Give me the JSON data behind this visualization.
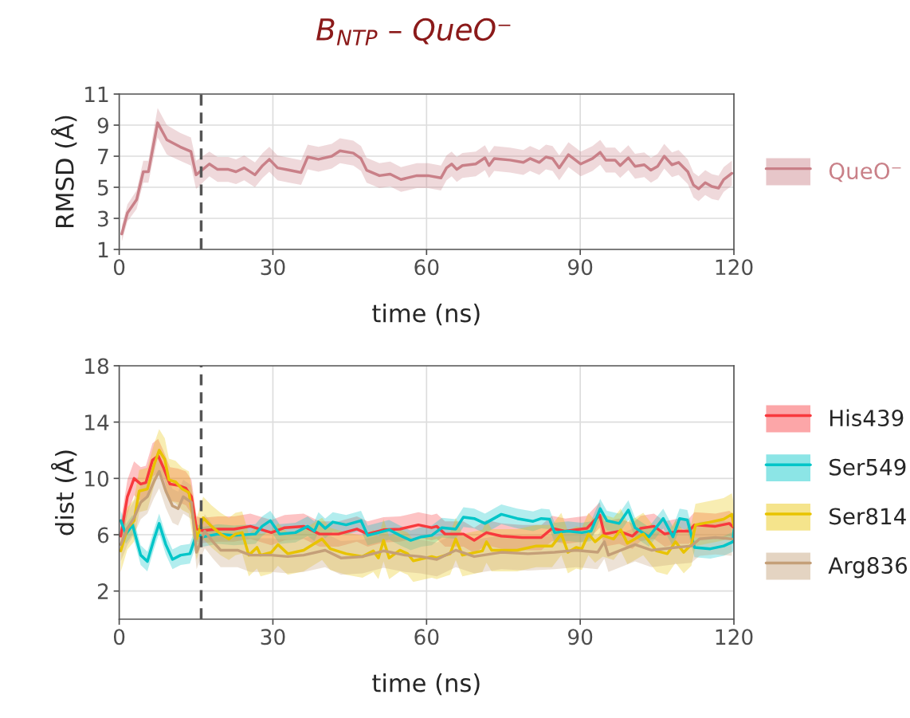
{
  "chart_data": [
    {
      "type": "line",
      "title": "B$_{NTP}$ – QueO⁻",
      "xlabel": "time (ns)",
      "ylabel": "RMSD (Å)",
      "xlim": [
        0,
        120
      ],
      "xticks": [
        0,
        30,
        60,
        90,
        120
      ],
      "ylim": [
        1,
        11
      ],
      "yticks": [
        1,
        3,
        5,
        7,
        9,
        11
      ],
      "grid": true,
      "legend": "right",
      "line_style": "solid",
      "marker": "none",
      "ref_lines": [
        {
          "axis": "x",
          "value": 16,
          "color": "#555555",
          "line_style": "dashed"
        }
      ],
      "series": [
        {
          "name": "QueO⁻",
          "color": "#c98088",
          "x": [
            0.5,
            1.6,
            3.4,
            4.7,
            5.7,
            7.5,
            9.3,
            11.9,
            14,
            15,
            17.6,
            19.2,
            21.3,
            22.8,
            24.4,
            26.5,
            28,
            29.3,
            30.9,
            33.2,
            35.5,
            36.8,
            38.9,
            41.5,
            43.1,
            45.7,
            47.2,
            48.3,
            50.8,
            52.9,
            55,
            58.1,
            60.3,
            62.8,
            63.9,
            64.9,
            65.9,
            67,
            69.6,
            71.4,
            72.2,
            73.2,
            76.3,
            78.9,
            80.2,
            82,
            83.3,
            84.6,
            85.9,
            87.7,
            90.1,
            92.4,
            93.9,
            95,
            96.8,
            97.8,
            99.4,
            100.7,
            102.5,
            103.8,
            105.1,
            106.4,
            107.9,
            109.2,
            111,
            112.1,
            113.1,
            114.4,
            115.7,
            117,
            118,
            119.6
          ],
          "values": [
            2.0,
            3.35,
            4.2,
            6.0,
            6.0,
            9.15,
            8.05,
            7.6,
            7.3,
            5.8,
            6.5,
            6.15,
            6.15,
            6.0,
            6.25,
            5.8,
            6.4,
            6.8,
            6.25,
            6.1,
            5.95,
            6.95,
            6.8,
            7.0,
            7.35,
            7.2,
            6.85,
            6.1,
            5.75,
            5.85,
            5.5,
            5.75,
            5.75,
            5.6,
            6.25,
            6.5,
            6.15,
            6.4,
            6.5,
            6.9,
            6.4,
            6.85,
            6.75,
            6.6,
            6.85,
            6.6,
            6.95,
            6.85,
            6.25,
            7.1,
            6.5,
            6.85,
            7.25,
            6.75,
            6.75,
            6.4,
            6.9,
            6.35,
            6.45,
            6.1,
            6.35,
            7.0,
            6.45,
            6.6,
            6.0,
            5.15,
            4.9,
            5.3,
            5.05,
            4.95,
            5.5,
            5.9
          ],
          "lower": [
            1.5,
            2.8,
            3.6,
            5.3,
            5.3,
            8.2,
            7.1,
            6.7,
            6.4,
            4.9,
            5.7,
            5.35,
            5.35,
            5.2,
            5.45,
            5.0,
            5.6,
            6.0,
            5.45,
            5.3,
            5.15,
            6.15,
            6.0,
            6.2,
            6.55,
            6.4,
            6.05,
            5.3,
            4.95,
            5.05,
            4.7,
            4.95,
            4.95,
            4.8,
            5.45,
            5.7,
            5.35,
            5.6,
            5.7,
            6.1,
            5.6,
            6.05,
            5.95,
            5.8,
            6.05,
            5.8,
            6.15,
            6.05,
            5.45,
            6.3,
            5.7,
            6.05,
            6.45,
            5.95,
            5.95,
            5.6,
            6.1,
            5.55,
            5.65,
            5.3,
            5.55,
            6.2,
            5.65,
            5.8,
            5.2,
            4.35,
            4.1,
            4.5,
            4.25,
            4.15,
            4.7,
            5.1
          ],
          "upper": [
            2.5,
            3.9,
            4.8,
            6.7,
            6.7,
            10.1,
            9.0,
            8.5,
            8.2,
            6.7,
            7.3,
            6.95,
            6.95,
            6.8,
            7.05,
            6.6,
            7.2,
            7.6,
            7.05,
            6.9,
            6.75,
            7.75,
            7.6,
            7.8,
            8.15,
            8.0,
            7.65,
            6.9,
            6.55,
            6.65,
            6.3,
            6.55,
            6.55,
            6.4,
            7.05,
            7.3,
            6.95,
            7.2,
            7.3,
            7.7,
            7.2,
            7.65,
            7.55,
            7.4,
            7.65,
            7.4,
            7.75,
            7.65,
            7.05,
            7.9,
            7.3,
            7.65,
            8.05,
            7.55,
            7.55,
            7.2,
            7.7,
            7.15,
            7.25,
            6.9,
            7.15,
            7.8,
            7.25,
            7.4,
            6.8,
            5.95,
            5.7,
            6.1,
            5.85,
            5.75,
            6.3,
            6.7
          ]
        }
      ]
    },
    {
      "type": "line",
      "xlabel": "time (ns)",
      "ylabel": "dist (Å)",
      "xlim": [
        0,
        120
      ],
      "xticks": [
        0,
        30,
        60,
        90,
        120
      ],
      "ylim": [
        0,
        18
      ],
      "yticks": [
        2,
        6,
        10,
        14,
        18
      ],
      "grid": true,
      "legend": "right",
      "line_style": "solid",
      "marker": "none",
      "ref_lines": [
        {
          "axis": "x",
          "value": 16,
          "color": "#555555",
          "line_style": "dashed"
        }
      ],
      "series": [
        {
          "name": "His439",
          "color": "#f8393d",
          "x": [
            0.3,
            1.6,
            2.9,
            4.2,
            5.2,
            6.5,
            7.6,
            8.6,
            9.9,
            11.5,
            13.0,
            14.1,
            15.1,
            16.2,
            19.3,
            22.4,
            25.6,
            29.7,
            32.3,
            36,
            39.1,
            42.8,
            46.4,
            48.5,
            51.6,
            54.8,
            58.4,
            61,
            62,
            63.6,
            67.2,
            69.3,
            71.7,
            74.6,
            78.7,
            82.4,
            84.5,
            87.1,
            91.3,
            93.8,
            94.7,
            97.6,
            100.2,
            101.8,
            104.4,
            106.5,
            109.1,
            111.2,
            112.3,
            116.4,
            119.1,
            120
          ],
          "values": [
            5.9,
            8.7,
            10.0,
            9.6,
            9.7,
            11.3,
            11.6,
            10.8,
            9.6,
            9.5,
            9.3,
            8.7,
            6.4,
            6.3,
            6.4,
            6.4,
            6.6,
            6.15,
            6.5,
            6.6,
            6.05,
            6.05,
            6.4,
            6.05,
            6.35,
            6.4,
            6.7,
            6.5,
            6.6,
            6.05,
            6.05,
            5.6,
            6.15,
            5.9,
            5.8,
            5.8,
            6.45,
            6.25,
            6.45,
            7.4,
            6.05,
            6.25,
            5.9,
            6.45,
            6.6,
            6.05,
            6.25,
            6.25,
            6.7,
            6.6,
            6.8,
            6.5
          ],
          "lower": [
            4.9,
            7.5,
            8.8,
            8.4,
            8.5,
            10.1,
            10.4,
            9.6,
            8.4,
            8.3,
            8.1,
            7.5,
            5.5,
            5.4,
            5.5,
            5.5,
            5.7,
            5.25,
            5.6,
            5.7,
            5.15,
            5.15,
            5.5,
            5.15,
            5.45,
            5.5,
            5.8,
            5.6,
            5.7,
            5.15,
            5.15,
            4.7,
            5.25,
            5.0,
            4.9,
            4.9,
            5.55,
            5.35,
            5.55,
            6.5,
            5.15,
            5.35,
            5.0,
            5.55,
            5.7,
            5.15,
            5.35,
            5.35,
            5.8,
            5.7,
            5.9,
            5.6
          ],
          "upper": [
            6.9,
            9.9,
            11.2,
            10.8,
            10.9,
            12.5,
            12.8,
            12.0,
            10.8,
            10.7,
            10.5,
            9.9,
            7.3,
            7.2,
            7.3,
            7.3,
            7.5,
            7.05,
            7.4,
            7.5,
            6.95,
            6.95,
            7.3,
            6.95,
            7.25,
            7.3,
            7.6,
            7.4,
            7.5,
            6.95,
            6.95,
            6.5,
            7.05,
            6.8,
            6.7,
            6.7,
            7.35,
            7.15,
            7.35,
            8.3,
            6.95,
            7.15,
            6.8,
            7.35,
            7.5,
            6.95,
            7.15,
            7.15,
            7.6,
            7.5,
            7.7,
            7.4
          ]
        },
        {
          "name": "Ser549",
          "color": "#00c5c8",
          "x": [
            0.3,
            1.3,
            2.6,
            4.2,
            5.5,
            6.8,
            7.8,
            9.1,
            10.4,
            12,
            13.8,
            15.1,
            16.4,
            19.3,
            22.4,
            26.6,
            27.9,
            29.5,
            31.3,
            34.4,
            36.8,
            38.1,
            38.9,
            40.2,
            41.7,
            44.3,
            47.2,
            48.5,
            50.6,
            52.7,
            54.8,
            56.9,
            59,
            61,
            63,
            65.7,
            67.2,
            69.3,
            71.4,
            74.6,
            77.7,
            80.8,
            82.4,
            84,
            85,
            87.6,
            90.3,
            92.1,
            93.9,
            95.2,
            97.6,
            99.4,
            100.7,
            103.4,
            106.2,
            108.1,
            109.4,
            110.9,
            112.3,
            115.4,
            118,
            119.8,
            120
          ],
          "values": [
            7.0,
            6.05,
            6.7,
            4.55,
            4.1,
            5.7,
            6.8,
            5.3,
            4.25,
            4.55,
            4.65,
            6.05,
            5.85,
            6.05,
            5.95,
            6.05,
            6.6,
            7.0,
            6.05,
            6.15,
            6.6,
            6.25,
            6.9,
            6.45,
            6.9,
            6.7,
            7.0,
            5.95,
            6.15,
            6.35,
            5.95,
            5.6,
            5.85,
            5.95,
            6.5,
            6.4,
            7.25,
            7.15,
            6.8,
            7.45,
            7.15,
            6.95,
            7.15,
            7.1,
            6.15,
            6.25,
            6.15,
            6.25,
            7.85,
            7.0,
            6.8,
            7.75,
            6.5,
            5.85,
            7.15,
            5.85,
            7.15,
            7.05,
            5.1,
            5.0,
            5.2,
            5.5,
            6.35
          ],
          "lower": [
            6.3,
            5.35,
            6.0,
            3.85,
            3.4,
            5.0,
            6.1,
            4.6,
            3.55,
            3.85,
            3.95,
            5.35,
            5.15,
            5.35,
            5.25,
            5.35,
            5.9,
            6.3,
            5.35,
            5.45,
            5.9,
            5.55,
            6.2,
            5.75,
            6.2,
            6.0,
            6.3,
            5.25,
            5.45,
            5.65,
            5.25,
            4.9,
            5.15,
            5.25,
            5.8,
            5.7,
            6.55,
            6.45,
            6.1,
            6.75,
            6.45,
            6.25,
            6.45,
            6.4,
            5.45,
            5.55,
            5.45,
            5.55,
            7.15,
            6.3,
            6.1,
            7.05,
            5.8,
            5.15,
            6.45,
            5.15,
            6.45,
            6.35,
            4.4,
            4.3,
            4.5,
            4.8,
            5.65
          ],
          "upper": [
            7.7,
            6.75,
            7.4,
            5.25,
            4.8,
            6.4,
            7.5,
            6.0,
            4.95,
            5.25,
            5.35,
            6.75,
            6.55,
            6.75,
            6.65,
            6.75,
            7.3,
            7.7,
            6.75,
            6.85,
            7.3,
            6.95,
            7.6,
            7.15,
            7.6,
            7.4,
            7.7,
            6.65,
            6.85,
            7.05,
            6.65,
            6.3,
            6.55,
            6.65,
            7.2,
            7.1,
            7.95,
            7.85,
            7.5,
            8.15,
            7.85,
            7.65,
            7.85,
            7.8,
            6.85,
            6.95,
            6.85,
            6.95,
            8.55,
            7.7,
            7.5,
            8.45,
            7.2,
            6.55,
            7.85,
            6.55,
            7.85,
            7.75,
            5.8,
            5.7,
            5.9,
            6.2,
            7.05
          ]
        },
        {
          "name": "Ser814",
          "color": "#e8c300",
          "x": [
            0.3,
            1.6,
            2.9,
            3.9,
            5.5,
            6.8,
            7.8,
            8.9,
            9.7,
            11,
            12.3,
            13.6,
            15.1,
            16.4,
            18,
            19.8,
            21.4,
            22.7,
            24,
            25.3,
            26.9,
            27.6,
            29.7,
            31,
            32.9,
            36,
            39.6,
            41.2,
            44.3,
            47.5,
            49.6,
            50.6,
            51.6,
            52.7,
            54.8,
            56.3,
            57.4,
            61,
            62,
            64.6,
            65.7,
            67,
            70.9,
            71.7,
            72.7,
            77.7,
            81.4,
            84.5,
            86.3,
            87.6,
            89.2,
            90.3,
            91.6,
            92.9,
            94.4,
            96.5,
            97.9,
            99.2,
            100.7,
            102.3,
            104.9,
            107,
            108.6,
            110.2,
            111.7,
            112.5,
            115.4,
            118,
            119.6,
            120
          ],
          "values": [
            4.85,
            6.45,
            7.0,
            9.1,
            9.25,
            10.95,
            12.0,
            11.35,
            9.9,
            9.75,
            9.25,
            9.0,
            5.7,
            7.2,
            6.6,
            6.05,
            5.7,
            6.05,
            6.15,
            4.55,
            5.1,
            4.55,
            4.75,
            5.3,
            4.65,
            4.9,
            5.7,
            5.0,
            4.65,
            4.45,
            4.85,
            4.35,
            5.6,
            4.35,
            4.9,
            4.65,
            4.15,
            4.45,
            4.35,
            4.65,
            5.7,
            4.55,
            4.85,
            5.5,
            4.9,
            4.9,
            5.2,
            5.2,
            6.05,
            4.75,
            5.1,
            5.0,
            6.05,
            5.5,
            5.95,
            5.7,
            6.35,
            5.4,
            5.7,
            6.05,
            4.85,
            4.65,
            5.5,
            4.75,
            5.3,
            6.7,
            6.9,
            7.1,
            7.45,
            6.6
          ],
          "lower": [
            3.35,
            4.95,
            5.5,
            7.6,
            7.75,
            9.45,
            10.5,
            9.85,
            8.4,
            8.25,
            7.75,
            7.5,
            4.2,
            5.7,
            5.1,
            4.55,
            4.2,
            4.55,
            4.65,
            3.05,
            3.6,
            3.05,
            3.25,
            3.8,
            3.15,
            3.4,
            4.2,
            3.5,
            3.15,
            2.95,
            3.35,
            2.85,
            4.1,
            2.85,
            3.4,
            3.15,
            2.65,
            2.95,
            2.85,
            3.15,
            4.2,
            3.05,
            3.35,
            4.0,
            3.4,
            3.4,
            3.7,
            3.7,
            4.55,
            3.25,
            3.6,
            3.5,
            4.55,
            4.0,
            4.45,
            4.2,
            4.85,
            3.9,
            4.2,
            4.55,
            3.35,
            3.15,
            4.0,
            3.25,
            3.8,
            5.2,
            5.4,
            5.6,
            5.95,
            5.1
          ],
          "upper": [
            6.35,
            7.95,
            8.5,
            10.6,
            10.75,
            12.45,
            13.5,
            12.85,
            11.4,
            11.25,
            10.75,
            10.5,
            7.2,
            8.7,
            8.1,
            7.55,
            7.2,
            7.55,
            7.65,
            6.05,
            6.6,
            6.05,
            6.25,
            6.8,
            6.15,
            6.4,
            7.2,
            6.5,
            6.15,
            5.95,
            6.35,
            5.85,
            7.1,
            5.85,
            6.4,
            6.15,
            5.65,
            5.95,
            5.85,
            6.15,
            7.2,
            6.05,
            6.35,
            7.0,
            6.4,
            6.4,
            6.7,
            6.7,
            7.55,
            6.25,
            6.6,
            6.5,
            7.55,
            7.0,
            7.45,
            7.2,
            7.85,
            6.9,
            7.2,
            7.55,
            6.35,
            6.15,
            7.0,
            6.25,
            6.8,
            8.2,
            8.4,
            8.6,
            8.95,
            8.1
          ]
        },
        {
          "name": "Arg836",
          "color": "#c49f78",
          "x": [
            0.3,
            1.6,
            2.9,
            4.2,
            5.5,
            6.8,
            7.8,
            9.1,
            10.4,
            11.5,
            12.5,
            14.1,
            15.1,
            16.7,
            18.3,
            19.8,
            23.1,
            25.6,
            29.7,
            32.9,
            36,
            40.2,
            43.3,
            47.5,
            51.6,
            55.8,
            58.8,
            62,
            65.7,
            69.3,
            74.6,
            79.8,
            85,
            89.2,
            93.4,
            94.7,
            95.5,
            100.7,
            103.9,
            108.6,
            111.7,
            113.3,
            116.4,
            119.6
          ],
          "values": [
            5.3,
            6.45,
            7.2,
            8.3,
            8.7,
            9.8,
            10.5,
            9.1,
            8.05,
            7.85,
            8.7,
            8.3,
            4.75,
            6.25,
            5.5,
            4.9,
            4.9,
            4.55,
            4.55,
            4.45,
            4.55,
            4.9,
            4.35,
            4.45,
            4.85,
            4.55,
            4.45,
            4.25,
            4.9,
            4.45,
            4.75,
            4.65,
            4.75,
            4.9,
            4.75,
            5.5,
            4.55,
            5.3,
            4.9,
            5.1,
            5.2,
            5.7,
            5.8,
            5.7
          ],
          "lower": [
            4.1,
            5.25,
            6.0,
            7.1,
            7.5,
            8.6,
            9.3,
            7.9,
            6.85,
            6.65,
            7.5,
            7.1,
            3.55,
            5.05,
            4.3,
            3.7,
            3.7,
            3.35,
            3.35,
            3.25,
            3.35,
            3.7,
            3.15,
            3.25,
            3.65,
            3.35,
            3.25,
            3.05,
            3.7,
            3.25,
            3.55,
            3.45,
            3.55,
            3.7,
            3.55,
            4.3,
            3.35,
            4.1,
            3.7,
            3.9,
            4.0,
            4.5,
            4.6,
            4.5
          ],
          "upper": [
            6.5,
            7.65,
            8.4,
            9.5,
            9.9,
            11.0,
            11.7,
            10.3,
            9.25,
            9.05,
            9.9,
            9.5,
            5.95,
            7.45,
            6.7,
            6.1,
            6.1,
            5.75,
            5.75,
            5.65,
            5.75,
            6.1,
            5.55,
            5.65,
            6.05,
            5.75,
            5.65,
            5.45,
            6.1,
            5.65,
            5.95,
            5.85,
            5.95,
            6.1,
            5.95,
            6.7,
            5.75,
            6.5,
            6.1,
            6.3,
            6.4,
            6.9,
            7.0,
            6.9
          ]
        }
      ]
    }
  ]
}
